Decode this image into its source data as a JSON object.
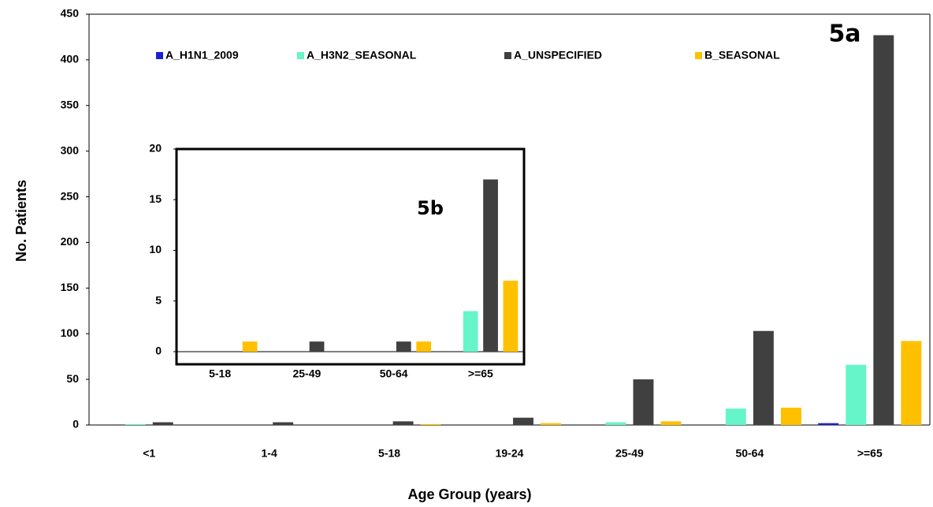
{
  "chart_data": [
    {
      "type": "bar",
      "x_label": "Age Group (years)",
      "y_label": "No. Patients",
      "annotation": "5a",
      "categories": [
        "<1",
        "1-4",
        "5-18",
        "19-24",
        "25-49",
        "50-64",
        ">=65"
      ],
      "series": [
        {
          "name": "A_H1N1_2009",
          "color": "#1c1cd9",
          "values": [
            0,
            0,
            0,
            0,
            0,
            0,
            2
          ]
        },
        {
          "name": "A_H3N2_SEASONAL",
          "color": "#66f5c8",
          "values": [
            1,
            0,
            0,
            0,
            3,
            18,
            66
          ]
        },
        {
          "name": "A_UNSPECIFIED",
          "color": "#404040",
          "values": [
            3,
            3,
            4,
            8,
            50,
            103,
            427
          ]
        },
        {
          "name": "B_SEASONAL",
          "color": "#ffc000",
          "values": [
            0,
            0,
            1,
            2,
            4,
            19,
            92
          ]
        }
      ],
      "ylim": [
        0,
        450
      ],
      "yticks": [
        0,
        50,
        100,
        150,
        200,
        250,
        300,
        350,
        400,
        450
      ]
    },
    {
      "type": "bar",
      "annotation": "5b",
      "categories": [
        "5-18",
        "25-49",
        "50-64",
        ">=65"
      ],
      "series": [
        {
          "color": "#1c1cd9",
          "values": [
            0,
            0,
            0,
            0
          ]
        },
        {
          "color": "#66f5c8",
          "values": [
            0,
            0,
            0,
            4
          ]
        },
        {
          "color": "#404040",
          "values": [
            0,
            1,
            1,
            17
          ]
        },
        {
          "color": "#ffc000",
          "values": [
            1,
            0,
            1,
            7
          ]
        }
      ],
      "ylim": [
        0,
        20
      ],
      "yticks": [
        0,
        5,
        10,
        15,
        20
      ]
    }
  ]
}
